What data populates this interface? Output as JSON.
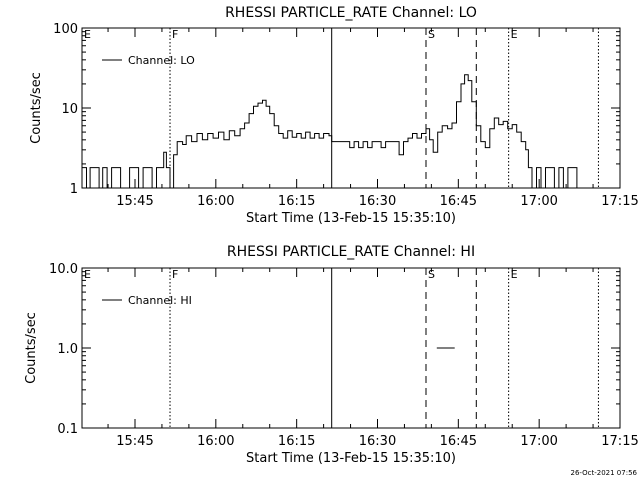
{
  "timestamp": "26-Oct-2021 07:56",
  "chart_data": [
    {
      "type": "line",
      "title": "RHESSI PARTICLE_RATE Channel: LO",
      "xlabel": "Start Time (13-Feb-15 15:35:10)",
      "ylabel": "Counts/sec",
      "y_scale": "log",
      "xlim": [
        "15:35:10",
        "17:15:00"
      ],
      "ylim": [
        1,
        100
      ],
      "x_ticks": [
        "15:45",
        "16:00",
        "16:15",
        "16:30",
        "16:45",
        "17:00",
        "17:15"
      ],
      "y_ticks": [
        "1",
        "10",
        "100"
      ],
      "legend": {
        "placement": "top-left",
        "entries": [
          "Channel: LO"
        ]
      },
      "grid": false,
      "markers": [
        {
          "label": "E",
          "time": "15:35:10",
          "style": "none"
        },
        {
          "label": "F",
          "time": "15:51:30",
          "style": "dotted"
        },
        {
          "label": "",
          "time": "16:21:30",
          "style": "solid"
        },
        {
          "label": "S",
          "time": "16:39:00",
          "style": "dashed"
        },
        {
          "label": "",
          "time": "16:48:20",
          "style": "dashed"
        },
        {
          "label": "E",
          "time": "16:54:20",
          "style": "dotted"
        },
        {
          "label": "",
          "time": "17:11:00",
          "style": "dotted"
        }
      ],
      "series": [
        {
          "name": "Channel: LO",
          "points": [
            [
              "15:35:10",
              1.8
            ],
            [
              "15:36:00",
              1.0
            ],
            [
              "15:36:40",
              1.8
            ],
            [
              "15:37:30",
              1.8
            ],
            [
              "15:38:20",
              1.0
            ],
            [
              "15:39:00",
              1.8
            ],
            [
              "15:39:50",
              1.0
            ],
            [
              "15:40:40",
              1.8
            ],
            [
              "15:41:30",
              1.8
            ],
            [
              "15:42:20",
              1.0
            ],
            [
              "15:43:10",
              1.0
            ],
            [
              "15:44:00",
              1.8
            ],
            [
              "15:44:50",
              1.8
            ],
            [
              "15:45:40",
              1.0
            ],
            [
              "15:46:30",
              1.8
            ],
            [
              "15:47:20",
              1.8
            ],
            [
              "15:48:10",
              1.0
            ],
            [
              "15:49:00",
              1.8
            ],
            [
              "15:49:40",
              1.8
            ],
            [
              "15:50:20",
              2.8
            ],
            [
              "15:50:50",
              1.8
            ],
            [
              "15:51:30",
              1.0
            ],
            [
              "15:52:10",
              2.6
            ],
            [
              "15:52:50",
              3.8
            ],
            [
              "15:53:50",
              3.5
            ],
            [
              "15:54:30",
              4.5
            ],
            [
              "15:55:30",
              3.8
            ],
            [
              "15:56:30",
              4.8
            ],
            [
              "15:57:30",
              4.0
            ],
            [
              "15:58:30",
              4.8
            ],
            [
              "15:59:30",
              4.2
            ],
            [
              "16:00:30",
              5.0
            ],
            [
              "16:01:30",
              4.0
            ],
            [
              "16:02:30",
              5.2
            ],
            [
              "16:03:30",
              4.5
            ],
            [
              "16:04:30",
              5.5
            ],
            [
              "16:05:20",
              6.5
            ],
            [
              "16:06:10",
              8.5
            ],
            [
              "16:07:00",
              10.5
            ],
            [
              "16:07:50",
              11.5
            ],
            [
              "16:08:40",
              12.5
            ],
            [
              "16:09:20",
              10.5
            ],
            [
              "16:10:00",
              8.5
            ],
            [
              "16:10:50",
              6.0
            ],
            [
              "16:11:40",
              4.8
            ],
            [
              "16:12:30",
              4.2
            ],
            [
              "16:13:20",
              5.2
            ],
            [
              "16:14:10",
              4.3
            ],
            [
              "16:15:00",
              4.8
            ],
            [
              "16:15:50",
              4.2
            ],
            [
              "16:16:40",
              5.0
            ],
            [
              "16:17:30",
              4.2
            ],
            [
              "16:18:20",
              4.8
            ],
            [
              "16:19:10",
              4.2
            ],
            [
              "16:20:00",
              4.8
            ],
            [
              "16:21:00",
              4.5
            ],
            [
              "16:21:30",
              3.8
            ],
            [
              "16:23:00",
              3.8
            ],
            [
              "16:24:00",
              3.8
            ],
            [
              "16:24:50",
              3.2
            ],
            [
              "16:25:40",
              3.8
            ],
            [
              "16:26:30",
              3.2
            ],
            [
              "16:27:20",
              3.8
            ],
            [
              "16:28:10",
              3.2
            ],
            [
              "16:29:00",
              3.8
            ],
            [
              "16:29:50",
              3.8
            ],
            [
              "16:30:40",
              3.2
            ],
            [
              "16:31:30",
              3.8
            ],
            [
              "16:32:20",
              3.8
            ],
            [
              "16:33:10",
              3.8
            ],
            [
              "16:34:00",
              2.6
            ],
            [
              "16:34:50",
              3.8
            ],
            [
              "16:35:40",
              4.2
            ],
            [
              "16:36:30",
              4.8
            ],
            [
              "16:37:20",
              4.2
            ],
            [
              "16:38:10",
              4.8
            ],
            [
              "16:39:00",
              5.5
            ],
            [
              "16:39:40",
              4.0
            ],
            [
              "16:40:20",
              2.8
            ],
            [
              "16:41:10",
              5.0
            ],
            [
              "16:42:00",
              6.0
            ],
            [
              "16:43:00",
              5.5
            ],
            [
              "16:43:50",
              6.5
            ],
            [
              "16:44:40",
              12.0
            ],
            [
              "16:45:30",
              20.0
            ],
            [
              "16:46:10",
              26.0
            ],
            [
              "16:46:50",
              22.0
            ],
            [
              "16:47:30",
              12.0
            ],
            [
              "16:48:20",
              6.0
            ],
            [
              "16:49:10",
              3.8
            ],
            [
              "16:50:00",
              3.2
            ],
            [
              "16:50:50",
              5.5
            ],
            [
              "16:51:40",
              7.5
            ],
            [
              "16:52:30",
              6.2
            ],
            [
              "16:53:20",
              6.8
            ],
            [
              "16:54:10",
              5.5
            ],
            [
              "16:55:00",
              6.2
            ],
            [
              "16:55:50",
              5.0
            ],
            [
              "16:56:40",
              3.8
            ],
            [
              "16:57:30",
              3.0
            ],
            [
              "16:58:00",
              1.8
            ],
            [
              "16:58:40",
              1.0
            ],
            [
              "16:59:30",
              1.8
            ],
            [
              "17:00:20",
              1.0
            ],
            [
              "17:01:10",
              1.8
            ],
            [
              "17:02:00",
              1.8
            ],
            [
              "17:02:50",
              1.0
            ],
            [
              "17:03:40",
              1.8
            ],
            [
              "17:04:30",
              1.0
            ],
            [
              "17:05:20",
              1.8
            ],
            [
              "17:06:10",
              1.8
            ],
            [
              "17:07:00",
              1.0
            ]
          ]
        }
      ]
    },
    {
      "type": "line",
      "title": "RHESSI PARTICLE_RATE Channel: HI",
      "xlabel": "Start Time (13-Feb-15 15:35:10)",
      "ylabel": "Counts/sec",
      "y_scale": "log",
      "xlim": [
        "15:35:10",
        "17:15:00"
      ],
      "ylim": [
        0.1,
        10
      ],
      "x_ticks": [
        "15:45",
        "16:00",
        "16:15",
        "16:30",
        "16:45",
        "17:00",
        "17:15"
      ],
      "y_ticks": [
        "0.1",
        "1.0",
        "10.0"
      ],
      "legend": {
        "placement": "top-left",
        "entries": [
          "Channel: HI"
        ]
      },
      "grid": false,
      "markers": [
        {
          "label": "E",
          "time": "15:35:10",
          "style": "none"
        },
        {
          "label": "F",
          "time": "15:51:30",
          "style": "dotted"
        },
        {
          "label": "",
          "time": "16:21:30",
          "style": "solid"
        },
        {
          "label": "S",
          "time": "16:39:00",
          "style": "dashed"
        },
        {
          "label": "",
          "time": "16:48:20",
          "style": "dashed"
        },
        {
          "label": "E",
          "time": "16:54:20",
          "style": "dotted"
        },
        {
          "label": "",
          "time": "17:11:00",
          "style": "dotted"
        }
      ],
      "series": [
        {
          "name": "Channel: HI",
          "points": [
            [
              "16:41:00",
              1.0
            ],
            [
              "16:44:20",
              1.0
            ]
          ]
        }
      ]
    }
  ]
}
